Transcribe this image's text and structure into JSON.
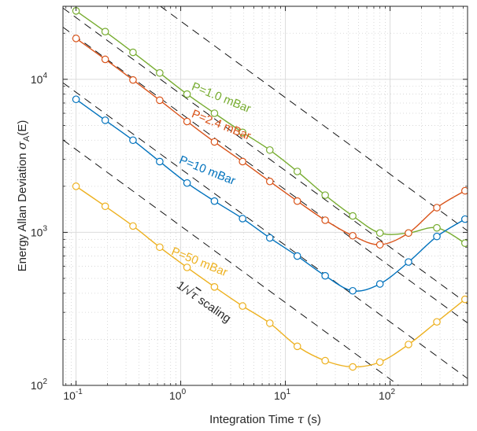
{
  "chart_data": {
    "type": "line",
    "xscale": "log",
    "yscale": "log",
    "xlim": [
      0.075,
      550
    ],
    "ylim": [
      100,
      30000
    ],
    "grid": true,
    "minor_grid": true,
    "title": "",
    "xlabel": {
      "main": "Integration Time ",
      "sym": "τ",
      "unit": " (s)"
    },
    "ylabel": {
      "main": "Energy Allan Deviation ",
      "sym": "σ",
      "sub": "A",
      "unit": "(E)"
    },
    "x_ticks": [
      {
        "value": 0.1,
        "base": "10",
        "exp": "-1"
      },
      {
        "value": 1,
        "base": "10",
        "exp": "0"
      },
      {
        "value": 10,
        "base": "10",
        "exp": "1"
      },
      {
        "value": 100,
        "base": "10",
        "exp": "2"
      }
    ],
    "y_ticks": [
      {
        "value": 100,
        "base": "10",
        "exp": "2"
      },
      {
        "value": 1000,
        "base": "10",
        "exp": "3"
      },
      {
        "value": 10000,
        "base": "10",
        "exp": "4"
      }
    ],
    "x": [
      0.1,
      0.19,
      0.35,
      0.63,
      1.15,
      2.1,
      3.9,
      7.1,
      13,
      24,
      44,
      80,
      150,
      280,
      520
    ],
    "series": [
      {
        "name": "P=1.0 mBar",
        "color": "#77ac30",
        "values": [
          28000,
          20500,
          15000,
          11000,
          8000,
          6000,
          4500,
          3450,
          2500,
          1750,
          1280,
          990,
          990,
          1070,
          850
        ]
      },
      {
        "name": "P=2.4 mBar",
        "color": "#d95319",
        "values": [
          18500,
          13500,
          9900,
          7300,
          5300,
          3900,
          2900,
          2150,
          1600,
          1200,
          950,
          830,
          990,
          1450,
          1870
        ]
      },
      {
        "name": "P=10 mBar",
        "color": "#0072bd",
        "values": [
          7400,
          5400,
          4000,
          2900,
          2100,
          1600,
          1230,
          920,
          700,
          520,
          415,
          460,
          640,
          940,
          1220
        ]
      },
      {
        "name": "P=50 mBar",
        "color": "#edb120",
        "values": [
          2000,
          1480,
          1100,
          800,
          590,
          440,
          330,
          255,
          180,
          145,
          132,
          142,
          185,
          260,
          365
        ]
      }
    ],
    "reference_lines": {
      "label": {
        "prefix": "1/√",
        "sym": "τ",
        "suffix": " scaling"
      },
      "style": "dashed",
      "color": "#000000",
      "slope": -0.5,
      "anchors_at_x1": [
        24000,
        8000,
        6000,
        2600,
        1100
      ]
    },
    "annotations": [
      {
        "series": "P=1.0 mBar",
        "text": "P=1.0 mBar",
        "color": "#77ac30",
        "x": 1.25,
        "y": 8600,
        "angle_deg": 22
      },
      {
        "series": "P=2.4 mBar",
        "text": "P=2.4 mBar",
        "color": "#d95319",
        "x": 1.25,
        "y": 5700,
        "angle_deg": 22
      },
      {
        "series": "P=10 mBar",
        "text": "P=10 mBar",
        "color": "#0072bd",
        "x": 0.95,
        "y": 2850,
        "angle_deg": 22
      },
      {
        "series": "P=50 mBar",
        "text": "P=50 mBar",
        "color": "#edb120",
        "x": 0.8,
        "y": 720,
        "angle_deg": 22
      },
      {
        "series": "reference",
        "text": "1/√τ scaling",
        "color": "#262626",
        "x": 0.9,
        "y": 440,
        "angle_deg": 35
      }
    ]
  }
}
